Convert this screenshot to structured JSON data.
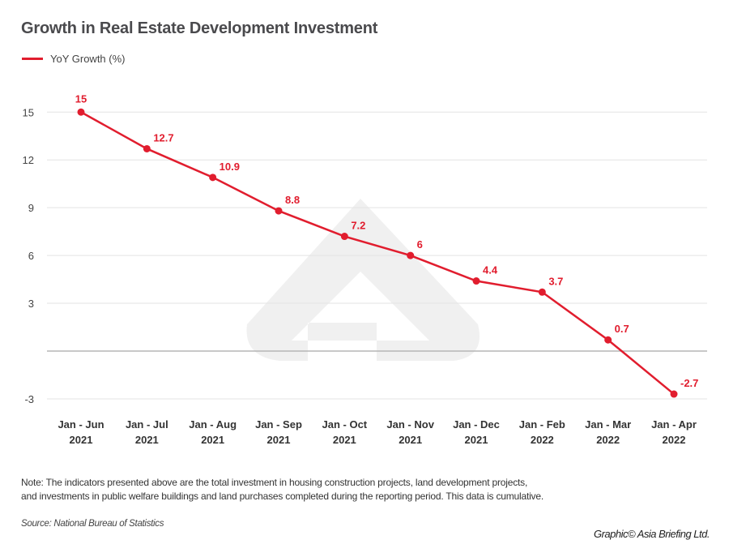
{
  "chart_data": {
    "type": "line",
    "title": "Growth in Real Estate Development Investment",
    "categories": [
      [
        "Jan - Jun",
        "2021"
      ],
      [
        "Jan - Jul",
        "2021"
      ],
      [
        "Jan - Aug",
        "2021"
      ],
      [
        "Jan - Sep",
        "2021"
      ],
      [
        "Jan - Oct",
        "2021"
      ],
      [
        "Jan - Nov",
        "2021"
      ],
      [
        "Jan - Dec",
        "2021"
      ],
      [
        "Jan - Feb",
        "2022"
      ],
      [
        "Jan - Mar",
        "2022"
      ],
      [
        "Jan - Apr",
        "2022"
      ]
    ],
    "series": [
      {
        "name": "YoY Growth (%)",
        "color": "#e11d2e",
        "values": [
          15,
          12.7,
          10.9,
          8.8,
          7.2,
          6,
          4.4,
          3.7,
          0.7,
          -2.7
        ]
      }
    ],
    "data_labels": [
      "15",
      "12.7",
      "10.9",
      "8.8",
      "7.2",
      "6",
      "4.4",
      "3.7",
      "0.7",
      "-2.7"
    ],
    "y_ticks": [
      15,
      12,
      9,
      6,
      3,
      -3
    ],
    "ylim": [
      -3,
      15
    ],
    "grid": true,
    "legend": "top-left",
    "xlabel": "",
    "ylabel": ""
  },
  "note": "Note: The indicators presented above are the total investment in housing construction projects, land development projects, and investments in public welfare buildings and land purchases completed during the reporting period. This data is cumulative.",
  "note_lines": [
    "Note: The indicators presented above are the total investment in housing construction projects, land development projects,",
    "and investments in public welfare buildings and land purchases completed during the reporting period. This data is cumulative."
  ],
  "source": "Source: National Bureau of Statistics",
  "credit": "Graphic© Asia Briefing Ltd."
}
